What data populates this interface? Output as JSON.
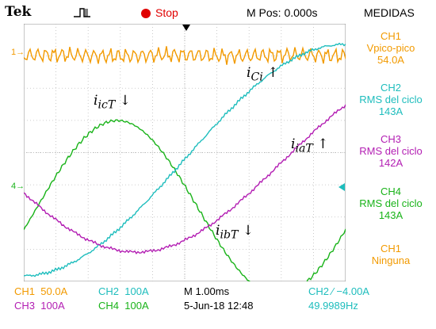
{
  "header": {
    "brand": "Tek",
    "status": "Stop",
    "mpos": "M Pos: 0.000s",
    "panel_title": "MEDIDAS"
  },
  "measurements": [
    {
      "channel": "CH1",
      "name": "Vpico-pico",
      "value": "54.0A",
      "color": "#f29a00"
    },
    {
      "channel": "CH2",
      "name": "RMS del ciclo",
      "value": "143A",
      "color": "#1ebdbd"
    },
    {
      "channel": "CH3",
      "name": "RMS del ciclo",
      "value": "142A",
      "color": "#b31eb3"
    },
    {
      "channel": "CH4",
      "name": "RMS del ciclo",
      "value": "143A",
      "color": "#19b319"
    },
    {
      "channel": "CH1",
      "name": "Ninguna",
      "value": "",
      "color": "#f29a00"
    }
  ],
  "footer": {
    "ch1": {
      "label": "CH1",
      "scale": "50.0A"
    },
    "ch2": {
      "label": "CH2",
      "scale": "100A"
    },
    "ch3": {
      "label": "CH3",
      "scale": "100A"
    },
    "ch4": {
      "label": "CH4",
      "scale": "100A"
    },
    "timebase": "M 1.00ms",
    "trigger": "CH2 ∕ −4.00A",
    "date": "5-Jun-18 12:48",
    "frequency": "49.9989Hz"
  },
  "markers": {
    "ch1": "1→",
    "ch4": "4→"
  },
  "annotations": {
    "ici": {
      "sym": "i",
      "sub": "Ci",
      "arrow": "↑"
    },
    "ict": {
      "sym": "i",
      "sub": "icT",
      "arrow": "↓"
    },
    "iat": {
      "sym": "i",
      "sub": "iaT",
      "arrow": "↑"
    },
    "ibt": {
      "sym": "i",
      "sub": "ibT",
      "arrow": "↓"
    }
  },
  "colors": {
    "ch1": "#f29a00",
    "ch2": "#1ebdbd",
    "ch3": "#b31eb3",
    "ch4": "#19b319",
    "grid": "#bdbdbd",
    "stop": "#e00000"
  }
}
